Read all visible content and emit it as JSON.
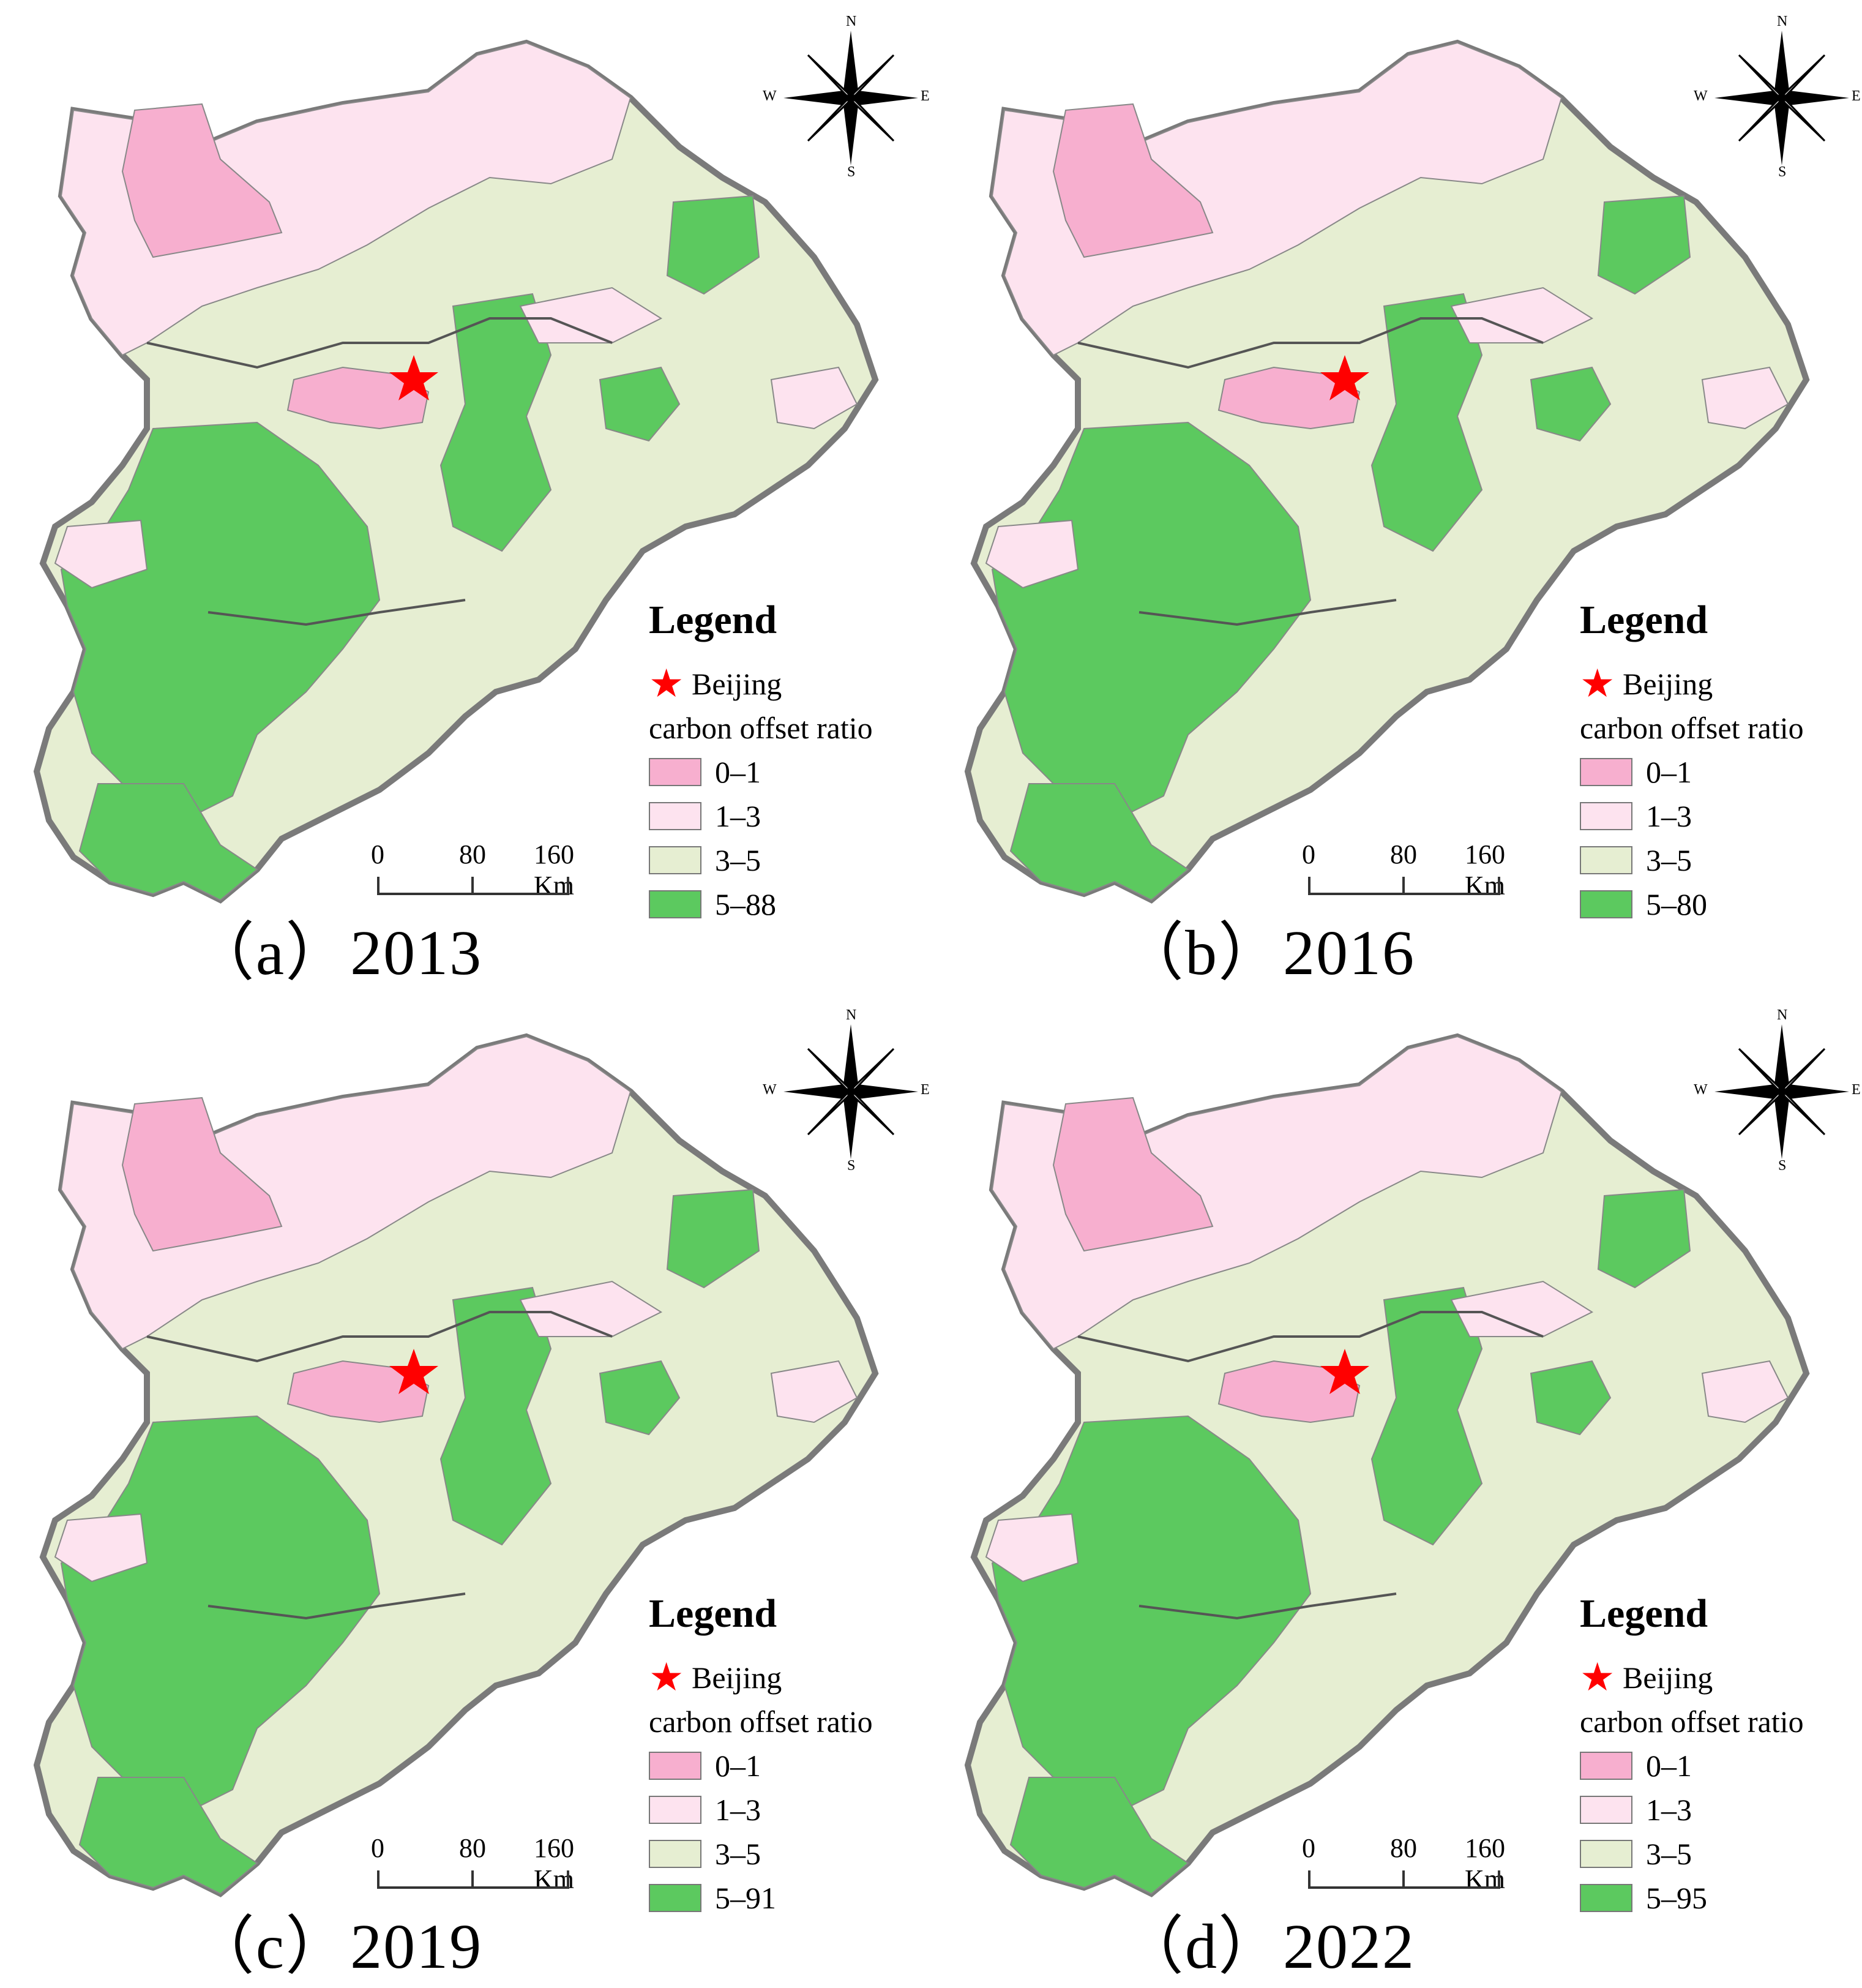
{
  "panels": [
    {
      "caption": "（a）2013",
      "legend": {
        "title": "Legend",
        "star_label": "Beijing",
        "subtitle": "carbon offset ratio",
        "classes": [
          "0–1",
          "1–3",
          "3–5",
          "5–88"
        ]
      },
      "scale": {
        "ticks": [
          "0",
          "80",
          "160 Km"
        ]
      },
      "compass": {
        "n": "N",
        "s": "S",
        "e": "E",
        "w": "W"
      }
    },
    {
      "caption": "（b）2016",
      "legend": {
        "title": "Legend",
        "star_label": "Beijing",
        "subtitle": "carbon offset ratio",
        "classes": [
          "0–1",
          "1–3",
          "3–5",
          "5–80"
        ]
      },
      "scale": {
        "ticks": [
          "0",
          "80",
          "160 Km"
        ]
      },
      "compass": {
        "n": "N",
        "s": "S",
        "e": "E",
        "w": "W"
      }
    },
    {
      "caption": "（c）2019",
      "legend": {
        "title": "Legend",
        "star_label": "Beijing",
        "subtitle": "carbon offset ratio",
        "classes": [
          "0–1",
          "1–3",
          "3–5",
          "5–91"
        ]
      },
      "scale": {
        "ticks": [
          "0",
          "80",
          "160 Km"
        ]
      },
      "compass": {
        "n": "N",
        "s": "S",
        "e": "E",
        "w": "W"
      }
    },
    {
      "caption": "（d）2022",
      "legend": {
        "title": "Legend",
        "star_label": "Beijing",
        "subtitle": "carbon offset ratio",
        "classes": [
          "0–1",
          "1–3",
          "3–5",
          "5–95"
        ]
      },
      "scale": {
        "ticks": [
          "0",
          "80",
          "160 Km"
        ]
      },
      "compass": {
        "n": "N",
        "s": "S",
        "e": "E",
        "w": "W"
      }
    }
  ],
  "class_colors": [
    "#f7afcf",
    "#fde3ef",
    "#e6eed2",
    "#5cc95f"
  ],
  "star_color": "#ff0000"
}
